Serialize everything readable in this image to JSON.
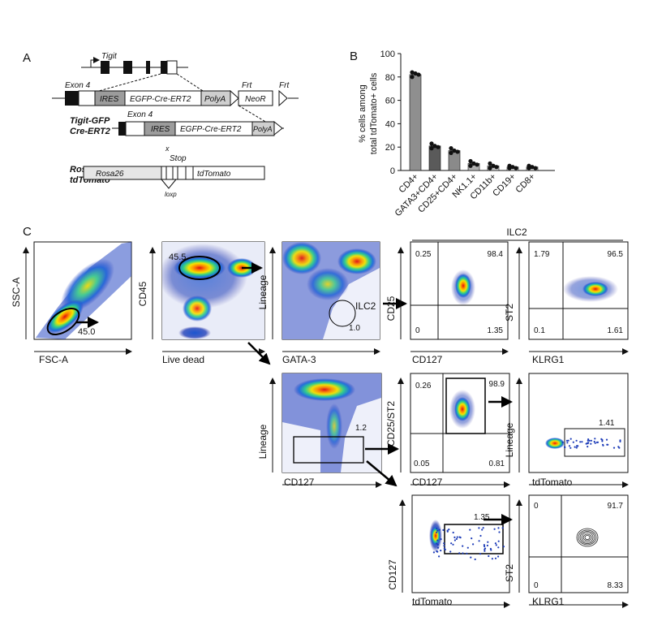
{
  "panels": {
    "a": "A",
    "b": "B",
    "c": "C"
  },
  "construct": {
    "tigit": "Tigit",
    "exon4": "Exon 4",
    "ires": "IRES",
    "egfp": "EGFP-Cre-ERT2",
    "polya": "PolyA",
    "neor": "NeoR",
    "frt": "Frt",
    "allele_line1": "Tigit-GFP",
    "allele_line2": "Cre-ERT2",
    "rosa_line1": "Rosa26",
    "rosa_line2": "tdTomato",
    "rosa26": "Rosa26",
    "stop": "Stop",
    "x": "x",
    "tdtomato": "tdTomato",
    "loxp": "loxp"
  },
  "chart_data": {
    "type": "bar",
    "ylabel_line1": "% cells among",
    "ylabel_line2": "total tdTomato+ cells",
    "ylim": [
      0,
      100
    ],
    "yticks": [
      0,
      20,
      40,
      60,
      80,
      100
    ],
    "categories": [
      "CD4+",
      "GATA3+CD4+",
      "CD25+CD4+",
      "NK1.1+",
      "CD11b+",
      "CD19+",
      "CD8+"
    ],
    "values": [
      82,
      21,
      17,
      6,
      4,
      3,
      3
    ],
    "points": [
      [
        84,
        83,
        82,
        80
      ],
      [
        23,
        21,
        20,
        19
      ],
      [
        19,
        17,
        16,
        15
      ],
      [
        8,
        6,
        5,
        4
      ],
      [
        6,
        4,
        3,
        2
      ],
      [
        4,
        3,
        2,
        2
      ],
      [
        4,
        3,
        2,
        2
      ]
    ],
    "colors": [
      "#8f8f8f",
      "#5a5a5a",
      "#8a8a8a",
      "#b0b0b0",
      "#c4c4c4",
      "#d8d8d8",
      "#d0d0d0"
    ]
  },
  "flow": {
    "ilc2_header": "ILC2",
    "p1": {
      "x": "FSC-A",
      "y": "SSC-A",
      "gate": "45.0"
    },
    "p2": {
      "x": "Live dead",
      "y": "CD45",
      "gate": "45.5"
    },
    "p3": {
      "x": "GATA-3",
      "y": "Lineage",
      "gate_label": "ILC2",
      "gate": "1.0"
    },
    "p4": {
      "x": "CD127",
      "y": "CD25",
      "tl": "0.25",
      "tr": "98.4",
      "bl": "0",
      "br": "1.35"
    },
    "p5": {
      "x": "KLRG1",
      "y": "ST2",
      "tl": "1.79",
      "tr": "96.5",
      "bl": "0.1",
      "br": "1.61"
    },
    "p6": {
      "x": "CD127",
      "y": "Lineage",
      "gate": "1.2"
    },
    "p7": {
      "x": "CD127",
      "y": "CD25/ST2",
      "tl": "0.26",
      "tr": "98.9",
      "bl": "0.05",
      "br": "0.81"
    },
    "p8": {
      "x": "tdTomato",
      "y": "Lineage",
      "gate": "1.41"
    },
    "p9": {
      "x": "tdTomato",
      "y": "CD127",
      "gate": "1.35"
    },
    "p10": {
      "x": "KLRG1",
      "y": "ST2",
      "tl": "0",
      "tr": "91.7",
      "bl": "0",
      "br": "8.33"
    }
  }
}
